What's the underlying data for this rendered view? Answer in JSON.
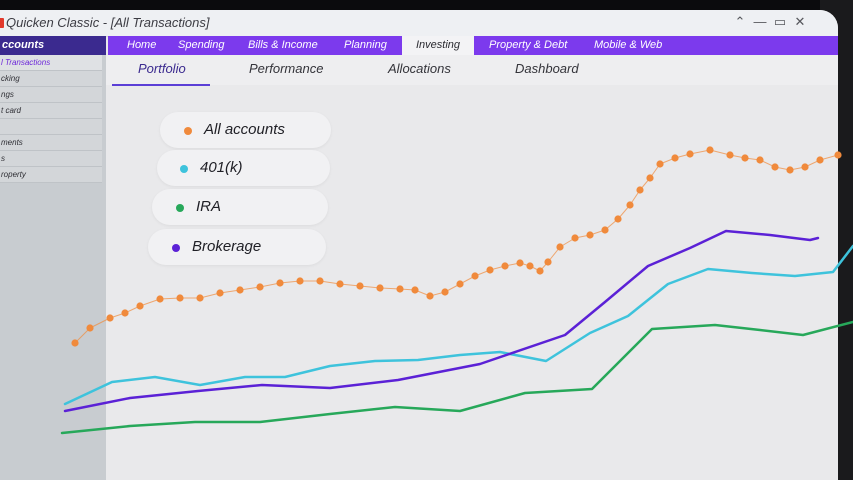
{
  "window": {
    "title": "Quicken Classic - [All Transactions]",
    "controls": [
      "chevron-up-icon",
      "minimize-icon",
      "restore-icon",
      "close-icon"
    ]
  },
  "nav": {
    "items": [
      {
        "label": "Home",
        "active": false
      },
      {
        "label": "Spending",
        "active": false
      },
      {
        "label": "Bills & Income",
        "active": false
      },
      {
        "label": "Planning",
        "active": false
      },
      {
        "label": "Investing",
        "active": true
      },
      {
        "label": "Property & Debt",
        "active": false
      },
      {
        "label": "Mobile & Web",
        "active": false
      }
    ]
  },
  "sidebar": {
    "header": "ccounts",
    "items": [
      {
        "label": "l Transactions",
        "active": true
      },
      {
        "label": "cking",
        "active": false
      },
      {
        "label": "ngs",
        "active": false
      },
      {
        "label": "t card",
        "active": false
      },
      {
        "label": "",
        "active": false
      },
      {
        "label": "ments",
        "active": false
      },
      {
        "label": "s",
        "active": false
      },
      {
        "label": "roperty",
        "active": false
      }
    ]
  },
  "subtabs": {
    "items": [
      {
        "label": "Portfolio",
        "active": true
      },
      {
        "label": "Performance",
        "active": false
      },
      {
        "label": "Allocations",
        "active": false
      },
      {
        "label": "Dashboard",
        "active": false
      }
    ]
  },
  "legend": [
    {
      "label": "All accounts",
      "color": "#f08a3c"
    },
    {
      "label": "401(k)",
      "color": "#3ec3dc"
    },
    {
      "label": "IRA",
      "color": "#27a85a"
    },
    {
      "label": "Brokerage",
      "color": "#5b21d6"
    }
  ],
  "chart_data": {
    "type": "line",
    "series": [
      {
        "name": "All accounts",
        "color": "#f08a3c",
        "dotted": true,
        "points": [
          [
            75,
            343
          ],
          [
            90,
            328
          ],
          [
            110,
            318
          ],
          [
            125,
            313
          ],
          [
            140,
            306
          ],
          [
            160,
            299
          ],
          [
            180,
            298
          ],
          [
            200,
            298
          ],
          [
            220,
            293
          ],
          [
            240,
            290
          ],
          [
            260,
            287
          ],
          [
            280,
            283
          ],
          [
            300,
            281
          ],
          [
            320,
            281
          ],
          [
            340,
            284
          ],
          [
            360,
            286
          ],
          [
            380,
            288
          ],
          [
            400,
            289
          ],
          [
            415,
            290
          ],
          [
            430,
            296
          ],
          [
            445,
            292
          ],
          [
            460,
            284
          ],
          [
            475,
            276
          ],
          [
            490,
            270
          ],
          [
            505,
            266
          ],
          [
            520,
            263
          ],
          [
            530,
            266
          ],
          [
            540,
            271
          ],
          [
            548,
            262
          ],
          [
            560,
            247
          ],
          [
            575,
            238
          ],
          [
            590,
            235
          ],
          [
            605,
            230
          ],
          [
            618,
            219
          ],
          [
            630,
            205
          ],
          [
            640,
            190
          ],
          [
            650,
            178
          ],
          [
            660,
            164
          ],
          [
            675,
            158
          ],
          [
            690,
            154
          ],
          [
            710,
            150
          ],
          [
            730,
            155
          ],
          [
            745,
            158
          ],
          [
            760,
            160
          ],
          [
            775,
            167
          ],
          [
            790,
            170
          ],
          [
            805,
            167
          ],
          [
            820,
            160
          ],
          [
            838,
            155
          ]
        ]
      },
      {
        "name": "401(k)",
        "color": "#3ec3dc",
        "dotted": false,
        "points": [
          [
            65,
            404
          ],
          [
            112,
            382
          ],
          [
            155,
            377
          ],
          [
            200,
            385
          ],
          [
            245,
            377
          ],
          [
            285,
            377
          ],
          [
            330,
            366
          ],
          [
            375,
            361
          ],
          [
            418,
            360
          ],
          [
            460,
            355
          ],
          [
            500,
            352
          ],
          [
            546,
            361
          ],
          [
            590,
            333
          ],
          [
            628,
            316
          ],
          [
            668,
            284
          ],
          [
            708,
            269
          ],
          [
            752,
            273
          ],
          [
            795,
            276
          ],
          [
            833,
            272
          ],
          [
            853,
            246
          ]
        ]
      },
      {
        "name": "IRA",
        "color": "#27a85a",
        "dotted": false,
        "points": [
          [
            62,
            433
          ],
          [
            130,
            426
          ],
          [
            195,
            422
          ],
          [
            260,
            422
          ],
          [
            330,
            414
          ],
          [
            395,
            407
          ],
          [
            460,
            411
          ],
          [
            525,
            393
          ],
          [
            592,
            389
          ],
          [
            652,
            329
          ],
          [
            715,
            325
          ],
          [
            760,
            330
          ],
          [
            803,
            335
          ],
          [
            853,
            322
          ]
        ]
      },
      {
        "name": "Brokerage",
        "color": "#5b21d6",
        "dotted": false,
        "points": [
          [
            65,
            411
          ],
          [
            130,
            398
          ],
          [
            198,
            391
          ],
          [
            262,
            385
          ],
          [
            330,
            388
          ],
          [
            398,
            380
          ],
          [
            480,
            364
          ],
          [
            565,
            335
          ],
          [
            605,
            302
          ],
          [
            648,
            266
          ],
          [
            690,
            248
          ],
          [
            726,
            231
          ],
          [
            770,
            235
          ],
          [
            810,
            240
          ],
          [
            818,
            238
          ]
        ]
      }
    ]
  }
}
